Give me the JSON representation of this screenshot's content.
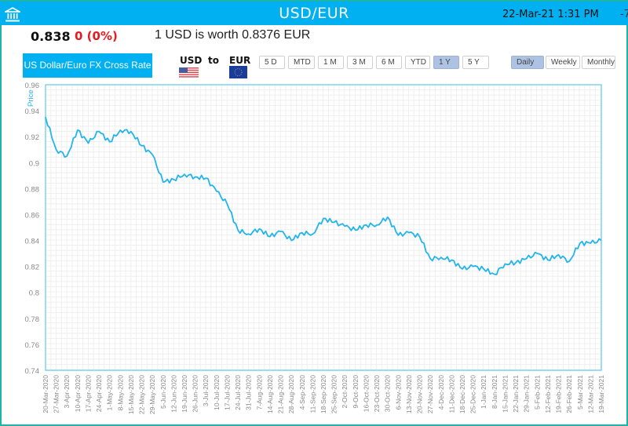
{
  "header": {
    "title": "USD/EUR",
    "datetime": "22-Mar-21 1:31 PM",
    "overflow_text": "-7",
    "bank_icon": "bank-icon"
  },
  "quote": {
    "price": "0.838",
    "change": "0 (0%)",
    "worth_text": "1 USD is worth 0.8376 EUR"
  },
  "controls": {
    "pair_label": "US Dollar/Euro FX Cross Rate",
    "from_currency": "USD",
    "to_word": "to",
    "to_currency": "EUR",
    "ranges": [
      "5 D",
      "MTD",
      "1 M",
      "3 M",
      "6 M",
      "YTD",
      "1 Y",
      "5 Y"
    ],
    "active_range": "1 Y",
    "intervals": [
      "Daily",
      "Weekly",
      "Monthly"
    ],
    "active_interval": "Daily"
  },
  "colors": {
    "accent": "#00b0f0",
    "frame": "#1fb5a6",
    "negative": "#e8191f",
    "line": "#22b4ec",
    "active_button": "#aec3e3"
  },
  "chart_data": {
    "type": "line",
    "title": "",
    "xlabel": "",
    "ylabel": "Price",
    "ylim": [
      0.74,
      0.96
    ],
    "yticks": [
      0.96,
      0.94,
      0.92,
      0.9,
      0.88,
      0.86,
      0.84,
      0.82,
      0.8,
      0.78,
      0.76,
      0.74
    ],
    "grid": true,
    "legend": "none",
    "categories": [
      "20-Mar-2020",
      "27-Mar-2020",
      "3-Apr-2020",
      "10-Apr-2020",
      "17-Apr-2020",
      "24-Apr-2020",
      "1-May-2020",
      "8-May-2020",
      "15-May-2020",
      "22-May-2020",
      "29-May-2020",
      "5-Jun-2020",
      "12-Jun-2020",
      "19-Jun-2020",
      "26-Jun-2020",
      "3-Jul-2020",
      "10-Jul-2020",
      "17-Jul-2020",
      "24-Jul-2020",
      "31-Jul-2020",
      "7-Aug-2020",
      "14-Aug-2020",
      "21-Aug-2020",
      "28-Aug-2020",
      "4-Sep-2020",
      "11-Sep-2020",
      "18-Sep-2020",
      "25-Sep-2020",
      "2-Oct-2020",
      "9-Oct-2020",
      "16-Oct-2020",
      "23-Oct-2020",
      "30-Oct-2020",
      "6-Nov-2020",
      "13-Nov-2020",
      "20-Nov-2020",
      "27-Nov-2020",
      "4-Dec-2020",
      "11-Dec-2020",
      "18-Dec-2020",
      "25-Dec-2020",
      "1-Jan-2021",
      "8-Jan-2021",
      "15-Jan-2021",
      "22-Jan-2021",
      "29-Jan-2021",
      "5-Feb-2021",
      "12-Feb-2021",
      "19-Feb-2021",
      "26-Feb-2021",
      "5-Mar-2021",
      "12-Mar-2021",
      "19-Mar-2021"
    ],
    "series": [
      {
        "name": "USD/EUR",
        "values": [
          0.935,
          0.91,
          0.905,
          0.925,
          0.915,
          0.924,
          0.916,
          0.925,
          0.924,
          0.913,
          0.906,
          0.885,
          0.887,
          0.891,
          0.889,
          0.888,
          0.878,
          0.868,
          0.848,
          0.845,
          0.849,
          0.843,
          0.847,
          0.84,
          0.846,
          0.845,
          0.857,
          0.854,
          0.851,
          0.848,
          0.852,
          0.852,
          0.858,
          0.844,
          0.846,
          0.843,
          0.826,
          0.827,
          0.825,
          0.818,
          0.82,
          0.818,
          0.814,
          0.822,
          0.823,
          0.826,
          0.83,
          0.825,
          0.829,
          0.824,
          0.838,
          0.838,
          0.84
        ]
      }
    ]
  }
}
